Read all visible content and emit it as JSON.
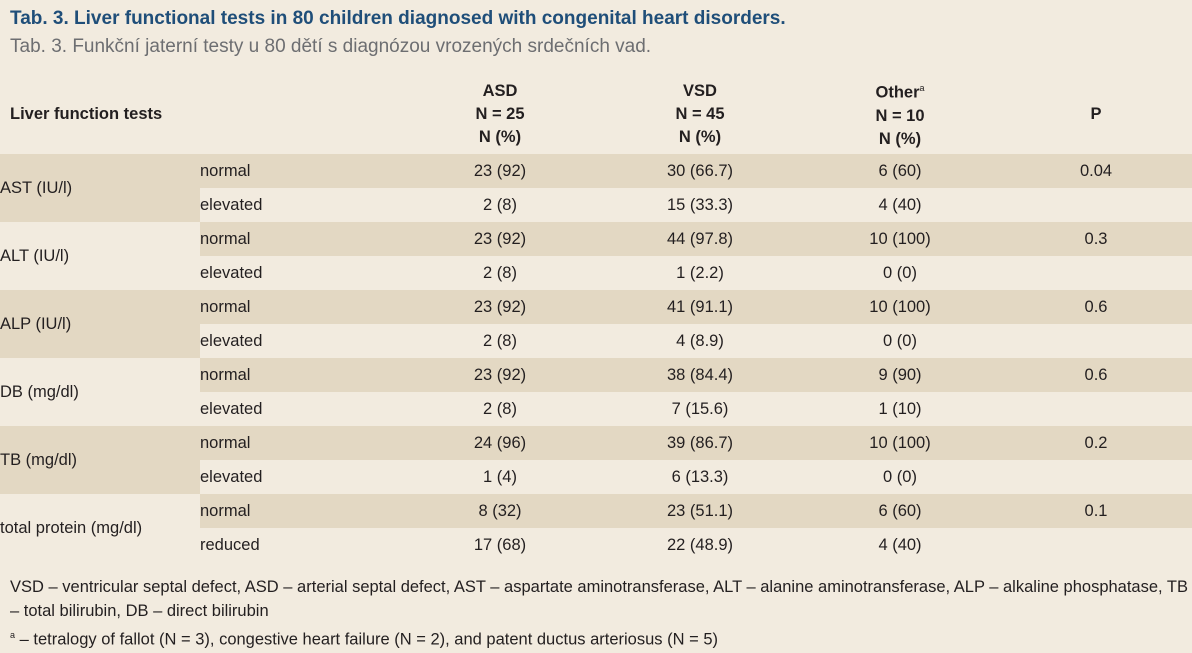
{
  "title_en": "Tab. 3. Liver functional tests in 80 children diagnosed with congenital heart disorders.",
  "title_cz": "Tab. 3. Funkční jaterní testy u 80 dětí s diagnózou vrozených srdečních vad.",
  "header": {
    "col1": "Liver function tests",
    "asd": {
      "name": "ASD",
      "n": "N = 25",
      "unit": "N (%)"
    },
    "vsd": {
      "name": "VSD",
      "n": "N = 45",
      "unit": "N (%)"
    },
    "other": {
      "name": "Other",
      "sup": "a",
      "n": "N = 10",
      "unit": "N (%)"
    },
    "p": "P"
  },
  "rows": [
    {
      "test": "AST (IU/l)",
      "p": "0.04",
      "a": {
        "level": "normal",
        "asd": "23 (92)",
        "vsd": "30 (66.7)",
        "other": "6 (60)"
      },
      "b": {
        "level": "elevated",
        "asd": "2 (8)",
        "vsd": "15 (33.3)",
        "other": "4 (40)"
      }
    },
    {
      "test": "ALT (IU/l)",
      "p": "0.3",
      "a": {
        "level": "normal",
        "asd": "23 (92)",
        "vsd": "44 (97.8)",
        "other": "10 (100)"
      },
      "b": {
        "level": "elevated",
        "asd": "2 (8)",
        "vsd": "1 (2.2)",
        "other": "0 (0)"
      }
    },
    {
      "test": "ALP (IU/l)",
      "p": "0.6",
      "a": {
        "level": "normal",
        "asd": "23 (92)",
        "vsd": "41 (91.1)",
        "other": "10 (100)"
      },
      "b": {
        "level": "elevated",
        "asd": "2 (8)",
        "vsd": "4 (8.9)",
        "other": "0 (0)"
      }
    },
    {
      "test": "DB (mg/dl)",
      "p": "0.6",
      "a": {
        "level": "normal",
        "asd": "23 (92)",
        "vsd": "38 (84.4)",
        "other": "9 (90)"
      },
      "b": {
        "level": "elevated",
        "asd": "2 (8)",
        "vsd": "7 (15.6)",
        "other": "1 (10)"
      }
    },
    {
      "test": "TB (mg/dl)",
      "p": "0.2",
      "a": {
        "level": "normal",
        "asd": "24 (96)",
        "vsd": "39 (86.7)",
        "other": "10 (100)"
      },
      "b": {
        "level": "elevated",
        "asd": "1 (4)",
        "vsd": "6 (13.3)",
        "other": "0 (0)"
      }
    },
    {
      "test": "total protein (mg/dl)",
      "p": "0.1",
      "a": {
        "level": "normal",
        "asd": "8 (32)",
        "vsd": "23 (51.1)",
        "other": "6 (60)"
      },
      "b": {
        "level": "reduced",
        "asd": "17 (68)",
        "vsd": "22 (48.9)",
        "other": "4 (40)"
      }
    }
  ],
  "footnote": {
    "abbrev": "VSD – ventricular septal defect, ASD – arterial septal defect, AST – aspartate aminotransferase, ALT – alanine aminotransferase, ALP – alkaline phosphatase, TB – total bilirubin, DB – direct bilirubin",
    "sup": "a",
    "note": " – tetralogy of fallot (N = 3), congestive heart failure (N = 2), and patent ductus arteriosus (N = 5)"
  }
}
